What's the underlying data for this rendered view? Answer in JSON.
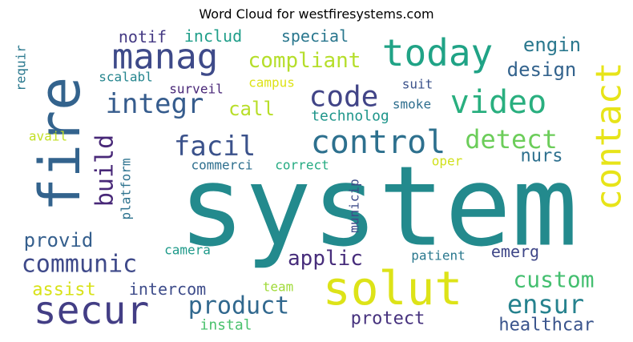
{
  "chart_data": {
    "type": "wordcloud",
    "title": "Word Cloud for westfiresystems.com",
    "words": [
      {
        "text": "system",
        "color": "#238a8d"
      },
      {
        "text": "fire",
        "color": "#33638d"
      },
      {
        "text": "solut",
        "color": "#dde318"
      },
      {
        "text": "secur",
        "color": "#433e85"
      },
      {
        "text": "manag",
        "color": "#3e4a89"
      },
      {
        "text": "contact",
        "color": "#e7e419"
      },
      {
        "text": "today",
        "color": "#20a386"
      },
      {
        "text": "video",
        "color": "#29af7f"
      },
      {
        "text": "control",
        "color": "#2d708e"
      },
      {
        "text": "code",
        "color": "#414487"
      },
      {
        "text": "product",
        "color": "#31688e"
      },
      {
        "text": "facil",
        "color": "#3b528b"
      },
      {
        "text": "integr",
        "color": "#365c8d"
      },
      {
        "text": "communic",
        "color": "#3e4989"
      },
      {
        "text": "compliant",
        "color": "#b5de2b"
      },
      {
        "text": "build",
        "color": "#482878"
      },
      {
        "text": "detect",
        "color": "#6ccd5a"
      },
      {
        "text": "ensur",
        "color": "#26828e"
      },
      {
        "text": "custom",
        "color": "#44bf70"
      },
      {
        "text": "applic",
        "color": "#472d7b"
      },
      {
        "text": "provid",
        "color": "#355f8d"
      },
      {
        "text": "protect",
        "color": "#46327e"
      },
      {
        "text": "healthcar",
        "color": "#3a548c"
      },
      {
        "text": "engin",
        "color": "#2a788e"
      },
      {
        "text": "design",
        "color": "#33638d"
      },
      {
        "text": "call",
        "color": "#b8de29"
      },
      {
        "text": "emerg",
        "color": "#3f4788"
      },
      {
        "text": "nurs",
        "color": "#2d708e"
      },
      {
        "text": "assist",
        "color": "#d8e219"
      },
      {
        "text": "intercom",
        "color": "#3e4c8a"
      },
      {
        "text": "notif",
        "color": "#443983"
      },
      {
        "text": "includ",
        "color": "#1f9e89"
      },
      {
        "text": "special",
        "color": "#2a778e"
      },
      {
        "text": "technolog",
        "color": "#1f968b"
      },
      {
        "text": "platform",
        "color": "#2c728e"
      },
      {
        "text": "requir",
        "color": "#2a788e"
      },
      {
        "text": "scalabl",
        "color": "#25858e"
      },
      {
        "text": "surveil",
        "color": "#482677"
      },
      {
        "text": "campus",
        "color": "#dde318"
      },
      {
        "text": "suit",
        "color": "#3b528b"
      },
      {
        "text": "smoke",
        "color": "#2e6e8e"
      },
      {
        "text": "avail",
        "color": "#c2df23"
      },
      {
        "text": "commerci",
        "color": "#2e6f8e"
      },
      {
        "text": "correct",
        "color": "#25ab82"
      },
      {
        "text": "oper",
        "color": "#d0e11c"
      },
      {
        "text": "municip",
        "color": "#3e4c8a"
      },
      {
        "text": "camera",
        "color": "#1f9a8a"
      },
      {
        "text": "patient",
        "color": "#2a788e"
      },
      {
        "text": "team",
        "color": "#a0da39"
      },
      {
        "text": "instal",
        "color": "#4ac16d"
      }
    ]
  }
}
